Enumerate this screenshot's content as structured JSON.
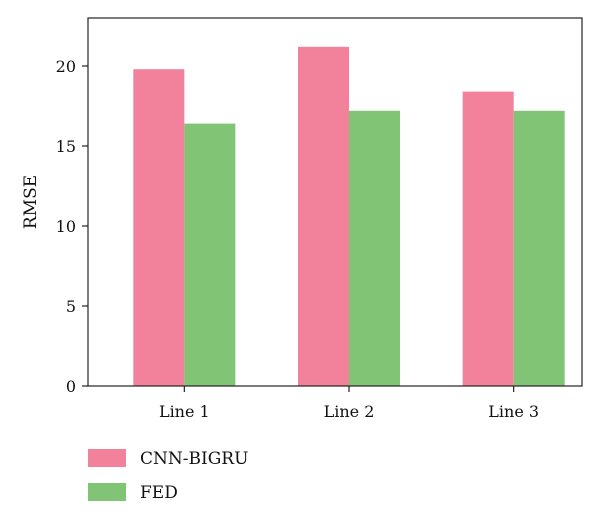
{
  "chart_data": {
    "type": "bar",
    "title": "",
    "xlabel": "",
    "ylabel": "RMSE",
    "categories": [
      "Line 1",
      "Line 2",
      "Line 3"
    ],
    "series": [
      {
        "name": "CNN-BIGRU",
        "values": [
          19.8,
          21.2,
          18.4
        ],
        "color": "#f2819b"
      },
      {
        "name": "FED",
        "values": [
          16.4,
          17.2,
          17.2
        ],
        "color": "#82c476"
      }
    ],
    "ylim": [
      0,
      23
    ],
    "yticks": [
      0,
      5,
      10,
      15,
      20
    ],
    "grid": false,
    "legend_position": "bottom-left"
  }
}
